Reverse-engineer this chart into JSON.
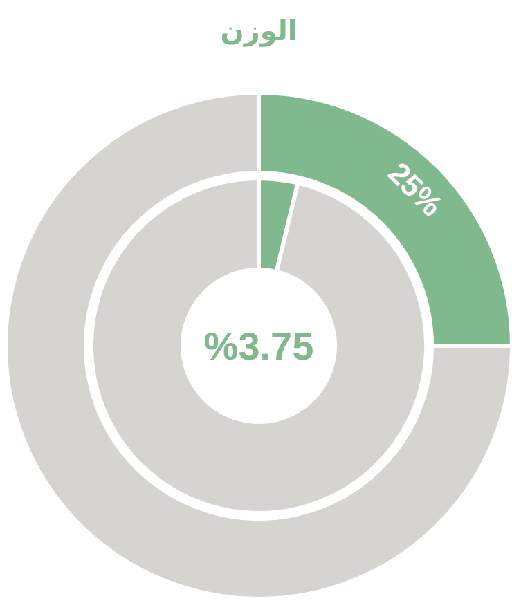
{
  "chart_data": {
    "type": "donut",
    "title": "الوزن",
    "categories": [
      null,
      null
    ],
    "colors": [
      "#80b98e",
      "#d6d4d1"
    ],
    "annotations": [
      "%3.75"
    ],
    "series": [
      {
        "values": [
          3.75,
          96.25
        ]
      },
      {
        "values": [
          25,
          75
        ],
        "value_labels": [
          "25%",
          null
        ]
      }
    ]
  }
}
